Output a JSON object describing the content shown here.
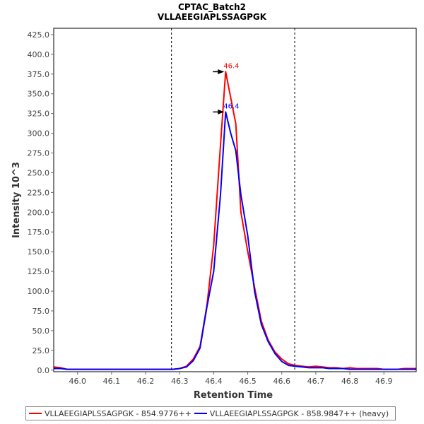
{
  "colors": {
    "light": "#ff0000",
    "heavy": "#0000ff",
    "frame": "#000000",
    "peak_label_light": "#ff0000",
    "peak_label_heavy": "#0000ff"
  },
  "chart_data": {
    "type": "line",
    "title": "CPTAC_Batch2",
    "subtitle": "VLLAEEGIAPLSSAGPGK",
    "xlabel": "Retention Time",
    "ylabel": "Intensity 10^3",
    "xlim": [
      45.93,
      46.995
    ],
    "ylim": [
      -2,
      433
    ],
    "xticks": [
      46.0,
      46.1,
      46.2,
      46.3,
      46.4,
      46.5,
      46.6,
      46.7,
      46.8,
      46.9
    ],
    "xtick_labels": [
      "46.0",
      "46.1",
      "46.2",
      "46.3",
      "46.4",
      "46.5",
      "46.6",
      "46.7",
      "46.8",
      "46.9"
    ],
    "yticks": [
      0,
      25,
      50,
      75,
      100,
      125,
      150,
      175,
      200,
      225,
      250,
      275,
      300,
      325,
      350,
      375,
      400,
      425
    ],
    "ytick_labels": [
      "0.0",
      "25.0",
      "50.0",
      "75.0",
      "100.0",
      "125.0",
      "150.0",
      "175.0",
      "200.0",
      "225.0",
      "250.0",
      "275.0",
      "300.0",
      "325.0",
      "350.0",
      "375.0",
      "400.0",
      "425.0"
    ],
    "boundaries": [
      46.276,
      46.638
    ],
    "series": [
      {
        "key": "light",
        "name": "VLLAEEGIAPLSSAGPGK - 854.9776++",
        "x": [
          45.93,
          45.95,
          45.97,
          46.0,
          46.05,
          46.1,
          46.15,
          46.2,
          46.25,
          46.28,
          46.3,
          46.32,
          46.34,
          46.36,
          46.38,
          46.4,
          46.42,
          46.435,
          46.45,
          46.465,
          46.48,
          46.5,
          46.52,
          46.54,
          46.56,
          46.58,
          46.6,
          46.62,
          46.64,
          46.66,
          46.68,
          46.7,
          46.72,
          46.74,
          46.76,
          46.78,
          46.8,
          46.82,
          46.84,
          46.86,
          46.88,
          46.9,
          46.92,
          46.94,
          46.96,
          46.98,
          46.995
        ],
        "values": [
          4,
          3,
          1,
          1,
          1,
          1,
          1,
          1,
          1,
          1,
          2,
          5,
          14,
          30,
          82,
          158,
          285,
          378,
          345,
          312,
          200,
          150,
          105,
          62,
          38,
          23,
          14,
          8,
          6,
          5,
          4,
          5,
          4,
          3,
          3,
          2,
          3,
          2,
          2,
          2,
          2,
          1,
          1,
          1,
          2,
          2,
          2
        ]
      },
      {
        "key": "heavy",
        "name": "VLLAEEGIAPLSSAGPGK - 858.9847++ (heavy)",
        "x": [
          45.93,
          45.95,
          45.97,
          46.0,
          46.05,
          46.1,
          46.15,
          46.2,
          46.25,
          46.28,
          46.3,
          46.32,
          46.34,
          46.36,
          46.38,
          46.4,
          46.42,
          46.435,
          46.45,
          46.465,
          46.48,
          46.5,
          46.52,
          46.54,
          46.56,
          46.58,
          46.6,
          46.62,
          46.64,
          46.66,
          46.68,
          46.7,
          46.72,
          46.74,
          46.76,
          46.78,
          46.8,
          46.82,
          46.84,
          46.86,
          46.88,
          46.9,
          46.92,
          46.94,
          46.96,
          46.98,
          46.995
        ],
        "values": [
          2,
          2,
          1,
          1,
          1,
          1,
          1,
          1,
          1,
          1,
          2,
          4,
          12,
          28,
          80,
          125,
          222,
          327,
          300,
          278,
          222,
          170,
          100,
          58,
          36,
          21,
          11,
          6,
          5,
          4,
          3,
          3,
          3,
          2,
          2,
          2,
          1,
          1,
          1,
          1,
          1,
          1,
          1,
          1,
          1,
          1,
          1
        ]
      }
    ],
    "peak_annotations": [
      {
        "series": "light",
        "label": "46.4",
        "x": 46.435,
        "y": 378
      },
      {
        "series": "heavy",
        "label": "46.4",
        "x": 46.435,
        "y": 327
      }
    ]
  }
}
